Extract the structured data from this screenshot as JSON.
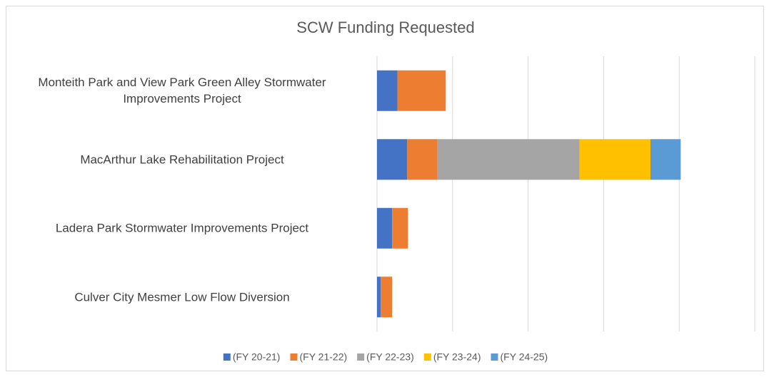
{
  "chart_data": {
    "type": "stacked-barh",
    "title": "SCW Funding Requested",
    "categories": [
      "Monteith Park and View Park Green Alley Stormwater Improvements Project",
      "MacArthur Lake Rehabilitation Project",
      "Ladera Park Stormwater Improvements Project",
      "Culver City Mesmer Low Flow Diversion"
    ],
    "series": [
      {
        "name": "(FY 20-21)",
        "color": "#4472c4",
        "values": [
          0.27,
          0.4,
          0.2,
          0.05
        ]
      },
      {
        "name": "(FY 21-22)",
        "color": "#ed7d31",
        "values": [
          0.64,
          0.4,
          0.21,
          0.15
        ]
      },
      {
        "name": "(FY 22-23)",
        "color": "#a5a5a5",
        "values": [
          0,
          1.88,
          0,
          0
        ]
      },
      {
        "name": "(FY 23-24)",
        "color": "#ffc000",
        "values": [
          0,
          0.94,
          0,
          0
        ]
      },
      {
        "name": "(FY 24-25)",
        "color": "#5b9bd5",
        "values": [
          0,
          0.4,
          0,
          0
        ]
      }
    ],
    "xlim": [
      0,
      5
    ],
    "xticks": [
      0,
      1,
      2,
      3,
      4,
      5
    ],
    "grid": true,
    "legend": "bottom"
  }
}
